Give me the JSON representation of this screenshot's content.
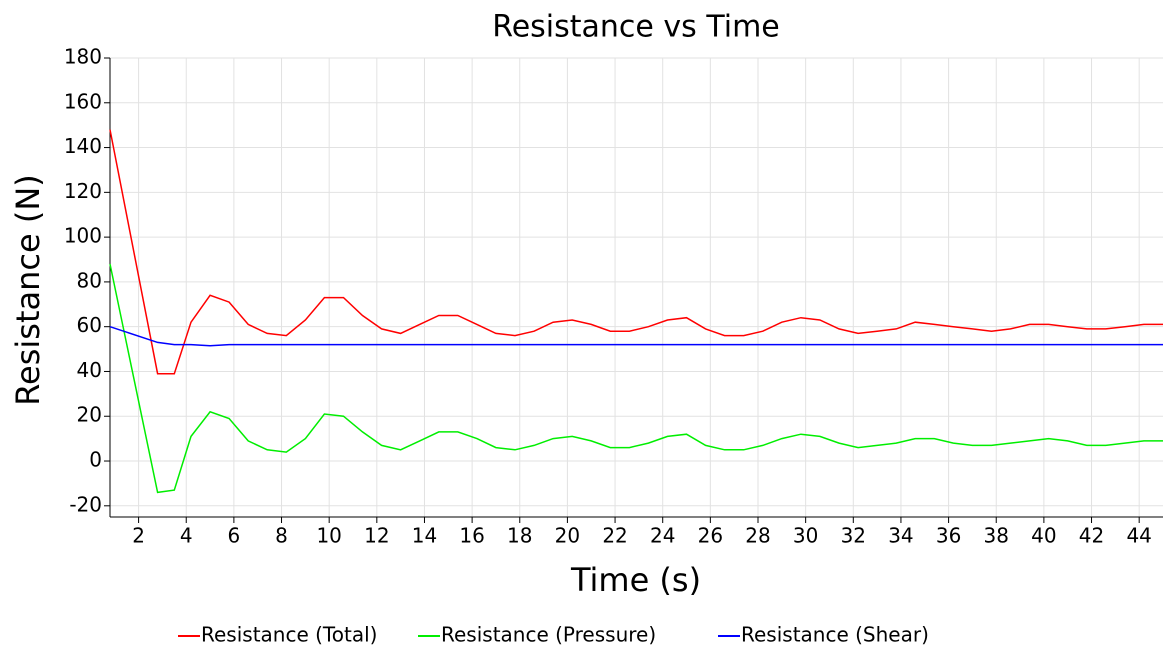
{
  "chart_data": {
    "type": "line",
    "title": "Resistance vs Time",
    "x_label": "Time (s)",
    "y_label": "Resistance (N)",
    "x": [
      0.8,
      2.8,
      3.5,
      4.2,
      5.0,
      5.8,
      6.6,
      7.4,
      8.2,
      9.0,
      9.8,
      10.6,
      11.4,
      12.2,
      13.0,
      13.8,
      14.6,
      15.4,
      16.2,
      17.0,
      17.8,
      18.6,
      19.4,
      20.2,
      21.0,
      21.8,
      22.6,
      23.4,
      24.2,
      25.0,
      25.8,
      26.6,
      27.4,
      28.2,
      29.0,
      29.8,
      30.6,
      31.4,
      32.2,
      33.0,
      33.8,
      34.6,
      35.4,
      36.2,
      37.0,
      37.8,
      38.6,
      39.4,
      40.2,
      41.0,
      41.8,
      42.6,
      43.4,
      44.2,
      45.0
    ],
    "series": [
      {
        "name": "Resistance (Total)",
        "color": "#ff0000",
        "values": [
          148,
          39,
          39,
          62,
          74,
          71,
          61,
          57,
          56,
          63,
          73,
          73,
          65,
          59,
          57,
          61,
          65,
          65,
          61,
          57,
          56,
          58,
          62,
          63,
          61,
          58,
          58,
          60,
          63,
          64,
          59,
          56,
          56,
          58,
          62,
          64,
          63,
          59,
          57,
          58,
          59,
          62,
          61,
          60,
          59,
          58,
          59,
          61,
          61,
          60,
          59,
          59,
          60,
          61,
          61
        ]
      },
      {
        "name": "Resistance (Pressure)",
        "color": "#00ee00",
        "values": [
          88,
          -14,
          -13,
          11,
          22,
          19,
          9,
          5,
          4,
          10,
          21,
          20,
          13,
          7,
          5,
          9,
          13,
          13,
          10,
          6,
          5,
          7,
          10,
          11,
          9,
          6,
          6,
          8,
          11,
          12,
          7,
          5,
          5,
          7,
          10,
          12,
          11,
          8,
          6,
          7,
          8,
          10,
          10,
          8,
          7,
          7,
          8,
          9,
          10,
          9,
          7,
          7,
          8,
          9,
          9
        ]
      },
      {
        "name": "Resistance (Shear)",
        "color": "#0000ff",
        "values": [
          60,
          53,
          52,
          52,
          51.5,
          52,
          52,
          52,
          52,
          52,
          52,
          52,
          52,
          52,
          52,
          52,
          52,
          52,
          52,
          52,
          52,
          52,
          52,
          52,
          52,
          52,
          52,
          52,
          52,
          52,
          52,
          52,
          52,
          52,
          52,
          52,
          52,
          52,
          52,
          52,
          52,
          52,
          52,
          52,
          52,
          52,
          52,
          52,
          52,
          52,
          52,
          52,
          52,
          52,
          52
        ]
      }
    ],
    "xlim": [
      0.8,
      45
    ],
    "ylim": [
      -25,
      180
    ],
    "xticks": [
      2,
      4,
      6,
      8,
      10,
      12,
      14,
      16,
      18,
      20,
      22,
      24,
      26,
      28,
      30,
      32,
      34,
      36,
      38,
      40,
      42,
      44
    ],
    "yticks": [
      -20,
      0,
      20,
      40,
      60,
      80,
      100,
      120,
      140,
      160,
      180
    ],
    "grid": true
  }
}
